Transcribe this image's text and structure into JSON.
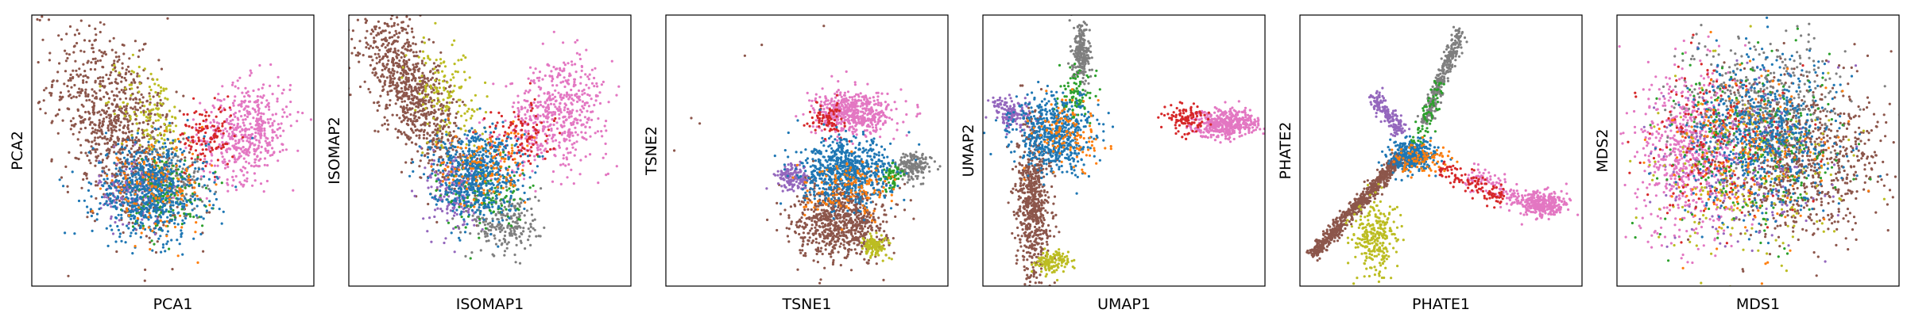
{
  "figure": {
    "panels": [
      {
        "key": "pca",
        "xlabel": "PCA1",
        "ylabel": "PCA2"
      },
      {
        "key": "isomap",
        "xlabel": "ISOMAP1",
        "ylabel": "ISOMAP2"
      },
      {
        "key": "tsne",
        "xlabel": "TSNE1",
        "ylabel": "TSNE2"
      },
      {
        "key": "umap",
        "xlabel": "UMAP1",
        "ylabel": "UMAP2"
      },
      {
        "key": "phate",
        "xlabel": "PHATE1",
        "ylabel": "PHATE2"
      },
      {
        "key": "mds",
        "xlabel": "MDS1",
        "ylabel": "MDS2"
      }
    ]
  },
  "chart_data": [
    {
      "type": "scatter",
      "title": "",
      "xlabel": "PCA1",
      "ylabel": "PCA2",
      "xlim": [
        0,
        1
      ],
      "ylim": [
        0,
        1
      ],
      "grid": false,
      "ticks": false,
      "legend": "none",
      "series": [
        {
          "color": "#8c564b",
          "clusters": [
            {
              "x": 0.3,
              "y": 0.58,
              "sx": 0.11,
              "sy": 0.19,
              "rho": -0.5,
              "n": 900
            }
          ]
        },
        {
          "color": "#bcbd22",
          "clusters": [
            {
              "x": 0.43,
              "y": 0.62,
              "sx": 0.06,
              "sy": 0.1,
              "rho": -0.3,
              "n": 140
            }
          ]
        },
        {
          "color": "#e377c2",
          "clusters": [
            {
              "x": 0.76,
              "y": 0.57,
              "sx": 0.08,
              "sy": 0.09,
              "rho": 0.2,
              "n": 500
            }
          ]
        },
        {
          "color": "#d62728",
          "clusters": [
            {
              "x": 0.62,
              "y": 0.55,
              "sx": 0.05,
              "sy": 0.06,
              "rho": 0.0,
              "n": 120
            }
          ]
        },
        {
          "color": "#7f7f7f",
          "clusters": [
            {
              "x": 0.5,
              "y": 0.4,
              "sx": 0.06,
              "sy": 0.06,
              "rho": 0.0,
              "n": 120
            }
          ]
        },
        {
          "color": "#9467bd",
          "clusters": [
            {
              "x": 0.36,
              "y": 0.35,
              "sx": 0.06,
              "sy": 0.06,
              "rho": 0.0,
              "n": 160
            }
          ]
        },
        {
          "color": "#2ca02c",
          "clusters": [
            {
              "x": 0.48,
              "y": 0.34,
              "sx": 0.07,
              "sy": 0.07,
              "rho": 0.0,
              "n": 150
            }
          ]
        },
        {
          "color": "#1f77b4",
          "clusters": [
            {
              "x": 0.42,
              "y": 0.35,
              "sx": 0.1,
              "sy": 0.09,
              "rho": 0.0,
              "n": 700
            }
          ]
        },
        {
          "color": "#ff7f0e",
          "clusters": [
            {
              "x": 0.44,
              "y": 0.36,
              "sx": 0.09,
              "sy": 0.08,
              "rho": 0.0,
              "n": 130
            }
          ]
        }
      ]
    },
    {
      "type": "scatter",
      "title": "",
      "xlabel": "ISOMAP1",
      "ylabel": "ISOMAP2",
      "xlim": [
        0,
        1
      ],
      "ylim": [
        0,
        1
      ],
      "grid": false,
      "ticks": false,
      "legend": "none",
      "series": [
        {
          "color": "#8c564b",
          "clusters": [
            {
              "x": 0.22,
              "y": 0.72,
              "sx": 0.09,
              "sy": 0.15,
              "rho": -0.7,
              "n": 900
            }
          ]
        },
        {
          "color": "#bcbd22",
          "clusters": [
            {
              "x": 0.35,
              "y": 0.68,
              "sx": 0.07,
              "sy": 0.12,
              "rho": -0.5,
              "n": 160
            }
          ]
        },
        {
          "color": "#e377c2",
          "clusters": [
            {
              "x": 0.74,
              "y": 0.64,
              "sx": 0.09,
              "sy": 0.1,
              "rho": 0.2,
              "n": 520
            }
          ]
        },
        {
          "color": "#d62728",
          "clusters": [
            {
              "x": 0.6,
              "y": 0.55,
              "sx": 0.06,
              "sy": 0.06,
              "rho": 0.0,
              "n": 110
            }
          ]
        },
        {
          "color": "#9467bd",
          "clusters": [
            {
              "x": 0.38,
              "y": 0.35,
              "sx": 0.05,
              "sy": 0.08,
              "rho": 0.0,
              "n": 200
            }
          ]
        },
        {
          "color": "#7f7f7f",
          "clusters": [
            {
              "x": 0.56,
              "y": 0.23,
              "sx": 0.06,
              "sy": 0.06,
              "rho": 0.0,
              "n": 220
            }
          ]
        },
        {
          "color": "#2ca02c",
          "clusters": [
            {
              "x": 0.48,
              "y": 0.35,
              "sx": 0.07,
              "sy": 0.07,
              "rho": 0.0,
              "n": 150
            }
          ]
        },
        {
          "color": "#1f77b4",
          "clusters": [
            {
              "x": 0.45,
              "y": 0.42,
              "sx": 0.08,
              "sy": 0.08,
              "rho": 0.0,
              "n": 600
            }
          ]
        },
        {
          "color": "#ff7f0e",
          "clusters": [
            {
              "x": 0.47,
              "y": 0.44,
              "sx": 0.08,
              "sy": 0.07,
              "rho": 0.0,
              "n": 130
            }
          ]
        }
      ]
    },
    {
      "type": "scatter",
      "title": "",
      "xlabel": "TSNE1",
      "ylabel": "TSNE2",
      "xlim": [
        0,
        1
      ],
      "ylim": [
        0,
        1
      ],
      "grid": false,
      "ticks": false,
      "legend": "none",
      "series": [
        {
          "color": "#e377c2",
          "clusters": [
            {
              "x": 0.67,
              "y": 0.64,
              "sx": 0.07,
              "sy": 0.04,
              "rho": 0.0,
              "n": 520
            }
          ]
        },
        {
          "color": "#d62728",
          "clusters": [
            {
              "x": 0.57,
              "y": 0.62,
              "sx": 0.03,
              "sy": 0.03,
              "rho": 0.0,
              "n": 80
            }
          ]
        },
        {
          "color": "#8c564b",
          "clusters": [
            {
              "x": 0.62,
              "y": 0.24,
              "sx": 0.08,
              "sy": 0.07,
              "rho": 0.0,
              "n": 800
            }
          ]
        },
        {
          "color": "#bcbd22",
          "clusters": [
            {
              "x": 0.74,
              "y": 0.15,
              "sx": 0.025,
              "sy": 0.02,
              "rho": 0.0,
              "n": 120
            }
          ]
        },
        {
          "color": "#9467bd",
          "clusters": [
            {
              "x": 0.45,
              "y": 0.4,
              "sx": 0.03,
              "sy": 0.025,
              "rho": 0.0,
              "n": 150
            }
          ]
        },
        {
          "color": "#7f7f7f",
          "clusters": [
            {
              "x": 0.88,
              "y": 0.44,
              "sx": 0.03,
              "sy": 0.025,
              "rho": 0.0,
              "n": 170
            }
          ]
        },
        {
          "color": "#2ca02c",
          "clusters": [
            {
              "x": 0.8,
              "y": 0.41,
              "sx": 0.02,
              "sy": 0.025,
              "rho": 0.0,
              "n": 60
            }
          ]
        },
        {
          "color": "#1f77b4",
          "clusters": [
            {
              "x": 0.64,
              "y": 0.42,
              "sx": 0.08,
              "sy": 0.06,
              "rho": 0.0,
              "n": 700
            }
          ]
        },
        {
          "color": "#ff7f0e",
          "clusters": [
            {
              "x": 0.65,
              "y": 0.36,
              "sx": 0.08,
              "sy": 0.05,
              "rho": 0.0,
              "n": 130
            }
          ]
        }
      ],
      "outliers": [
        {
          "x": 0.56,
          "y": 0.96
        },
        {
          "x": 0.34,
          "y": 0.89
        },
        {
          "x": 0.28,
          "y": 0.85
        },
        {
          "x": 0.09,
          "y": 0.62
        },
        {
          "x": 0.03,
          "y": 0.5
        },
        {
          "x": 0.12,
          "y": 0.6
        }
      ]
    },
    {
      "type": "scatter",
      "title": "",
      "xlabel": "UMAP1",
      "ylabel": "UMAP2",
      "xlim": [
        0,
        1
      ],
      "ylim": [
        0,
        1
      ],
      "grid": false,
      "ticks": false,
      "legend": "none",
      "series": [
        {
          "color": "#e377c2",
          "clusters": [
            {
              "x": 0.86,
              "y": 0.6,
              "sx": 0.06,
              "sy": 0.025,
              "rho": 0.0,
              "n": 450
            }
          ]
        },
        {
          "color": "#d62728",
          "clusters": [
            {
              "x": 0.72,
              "y": 0.62,
              "sx": 0.035,
              "sy": 0.025,
              "rho": 0.0,
              "n": 110
            }
          ]
        },
        {
          "color": "#7f7f7f",
          "clusters": [
            {
              "x": 0.35,
              "y": 0.86,
              "sx": 0.015,
              "sy": 0.06,
              "rho": 0.0,
              "n": 230
            }
          ]
        },
        {
          "color": "#9467bd",
          "clusters": [
            {
              "x": 0.1,
              "y": 0.64,
              "sx": 0.035,
              "sy": 0.03,
              "rho": -0.4,
              "n": 150
            }
          ]
        },
        {
          "color": "#8c564b",
          "clusters": [
            {
              "x": 0.18,
              "y": 0.3,
              "sx": 0.03,
              "sy": 0.15,
              "rho": 0.0,
              "n": 650
            }
          ]
        },
        {
          "color": "#bcbd22",
          "clusters": [
            {
              "x": 0.25,
              "y": 0.09,
              "sx": 0.03,
              "sy": 0.02,
              "rho": 0.0,
              "n": 140
            }
          ]
        },
        {
          "color": "#2ca02c",
          "clusters": [
            {
              "x": 0.33,
              "y": 0.7,
              "sx": 0.03,
              "sy": 0.04,
              "rho": 0.0,
              "n": 90
            }
          ]
        },
        {
          "color": "#1f77b4",
          "clusters": [
            {
              "x": 0.25,
              "y": 0.56,
              "sx": 0.07,
              "sy": 0.07,
              "rho": 0.0,
              "n": 600
            }
          ]
        },
        {
          "color": "#ff7f0e",
          "clusters": [
            {
              "x": 0.3,
              "y": 0.56,
              "sx": 0.06,
              "sy": 0.06,
              "rho": 0.0,
              "n": 120
            }
          ]
        }
      ]
    },
    {
      "type": "scatter",
      "title": "",
      "xlabel": "PHATE1",
      "ylabel": "PHATE2",
      "xlim": [
        0,
        1
      ],
      "ylim": [
        0,
        1
      ],
      "grid": false,
      "ticks": false,
      "legend": "none",
      "series": [
        {
          "color": "#8c564b",
          "lines": [
            {
              "x1": 0.04,
              "y1": 0.11,
              "x2": 0.36,
              "y2": 0.48,
              "w": 0.012,
              "n": 700
            }
          ]
        },
        {
          "color": "#7f7f7f",
          "lines": [
            {
              "x1": 0.44,
              "y1": 0.6,
              "x2": 0.57,
              "y2": 0.95,
              "w": 0.012,
              "n": 320
            }
          ]
        },
        {
          "color": "#9467bd",
          "lines": [
            {
              "x1": 0.26,
              "y1": 0.71,
              "x2": 0.36,
              "y2": 0.56,
              "w": 0.015,
              "n": 160
            }
          ]
        },
        {
          "color": "#e377c2",
          "clusters": [
            {
              "x": 0.86,
              "y": 0.3,
              "sx": 0.04,
              "sy": 0.025,
              "rho": 0.0,
              "n": 300
            }
          ],
          "lines": [
            {
              "x1": 0.6,
              "y1": 0.42,
              "x2": 0.82,
              "y2": 0.3,
              "w": 0.02,
              "n": 120
            }
          ]
        },
        {
          "color": "#d62728",
          "lines": [
            {
              "x1": 0.5,
              "y1": 0.44,
              "x2": 0.72,
              "y2": 0.32,
              "w": 0.02,
              "n": 120
            }
          ]
        },
        {
          "color": "#bcbd22",
          "clusters": [
            {
              "x": 0.27,
              "y": 0.17,
              "sx": 0.04,
              "sy": 0.07,
              "rho": 0.0,
              "n": 280
            }
          ]
        },
        {
          "color": "#2ca02c",
          "lines": [
            {
              "x1": 0.4,
              "y1": 0.52,
              "x2": 0.5,
              "y2": 0.75,
              "w": 0.015,
              "n": 70
            }
          ]
        },
        {
          "color": "#1f77b4",
          "clusters": [
            {
              "x": 0.4,
              "y": 0.48,
              "sx": 0.04,
              "sy": 0.03,
              "rho": 0.0,
              "n": 380
            }
          ]
        },
        {
          "color": "#ff7f0e",
          "clusters": [
            {
              "x": 0.43,
              "y": 0.47,
              "sx": 0.05,
              "sy": 0.03,
              "rho": 0.0,
              "n": 90
            }
          ]
        }
      ]
    },
    {
      "type": "scatter",
      "title": "",
      "xlabel": "MDS1",
      "ylabel": "MDS2",
      "xlim": [
        0,
        1
      ],
      "ylim": [
        0,
        1
      ],
      "grid": false,
      "ticks": false,
      "legend": "none",
      "series": [
        {
          "color": "#8c564b",
          "clusters": [
            {
              "x": 0.66,
              "y": 0.48,
              "sx": 0.14,
              "sy": 0.15,
              "rho": 0.0,
              "n": 800
            }
          ]
        },
        {
          "color": "#e377c2",
          "clusters": [
            {
              "x": 0.25,
              "y": 0.49,
              "sx": 0.09,
              "sy": 0.15,
              "rho": 0.0,
              "n": 650
            }
          ]
        },
        {
          "color": "#7f7f7f",
          "clusters": [
            {
              "x": 0.5,
              "y": 0.68,
              "sx": 0.15,
              "sy": 0.12,
              "rho": 0.0,
              "n": 400
            }
          ]
        },
        {
          "color": "#9467bd",
          "clusters": [
            {
              "x": 0.46,
              "y": 0.48,
              "sx": 0.14,
              "sy": 0.16,
              "rho": 0.0,
              "n": 250
            }
          ]
        },
        {
          "color": "#bcbd22",
          "clusters": [
            {
              "x": 0.46,
              "y": 0.42,
              "sx": 0.16,
              "sy": 0.16,
              "rho": 0.0,
              "n": 220
            }
          ]
        },
        {
          "color": "#2ca02c",
          "clusters": [
            {
              "x": 0.47,
              "y": 0.5,
              "sx": 0.16,
              "sy": 0.16,
              "rho": 0.0,
              "n": 250
            }
          ]
        },
        {
          "color": "#d62728",
          "clusters": [
            {
              "x": 0.35,
              "y": 0.52,
              "sx": 0.14,
              "sy": 0.16,
              "rho": 0.0,
              "n": 200
            }
          ]
        },
        {
          "color": "#1f77b4",
          "clusters": [
            {
              "x": 0.52,
              "y": 0.55,
              "sx": 0.13,
              "sy": 0.14,
              "rho": 0.0,
              "n": 600
            }
          ]
        },
        {
          "color": "#ff7f0e",
          "clusters": [
            {
              "x": 0.48,
              "y": 0.5,
              "sx": 0.15,
              "sy": 0.16,
              "rho": 0.0,
              "n": 180
            }
          ]
        }
      ]
    }
  ]
}
